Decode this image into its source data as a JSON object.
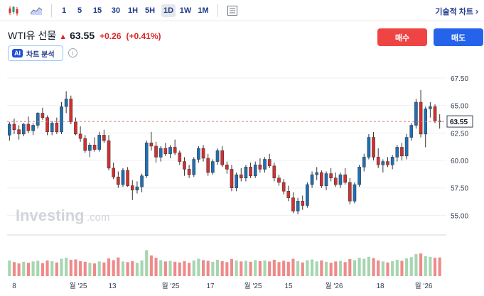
{
  "toolbar": {
    "intervals": [
      "1",
      "5",
      "15",
      "30",
      "1H",
      "5H",
      "1D",
      "1W",
      "1M"
    ],
    "active_interval": "1D",
    "indicators_label": "기술적 차트"
  },
  "instrument": {
    "symbol": "WTI유 선물",
    "price": "63.55",
    "change": "+0.26",
    "change_pct": "(+0.41%)"
  },
  "actions": {
    "buy_label": "매수",
    "sell_label": "매도"
  },
  "ai_analysis": {
    "badge": "AI",
    "label": "차트 분석"
  },
  "watermark": {
    "brand": "Investing",
    "suffix": ".com"
  },
  "colors": {
    "up": "#2a9d6f",
    "down": "#d32f2f",
    "candle_up_fill": "#1f6fb5",
    "candle_down_fill": "#d32f2f",
    "vol_up": "#a5d6b0",
    "vol_down": "#ef8a8a"
  },
  "chart_data": {
    "type": "candlestick",
    "y_ticks": [
      "67.50",
      "65.00",
      "62.50",
      "60.00",
      "57.50",
      "55.00"
    ],
    "ylim": [
      53.8,
      68.4
    ],
    "current_price_label": "63.55",
    "current_price": 63.55,
    "x_labels": [
      "8",
      "월 '25",
      "13",
      "월 '25",
      "17",
      "월 '25",
      "15",
      "월 '26",
      "18",
      "월 '26"
    ],
    "candles": [
      [
        62.3,
        63.5,
        61.8,
        63.3,
        47
      ],
      [
        63.3,
        63.8,
        62.4,
        62.8,
        42
      ],
      [
        62.8,
        63.2,
        61.9,
        62.4,
        38
      ],
      [
        62.4,
        63.4,
        62.2,
        63.3,
        43
      ],
      [
        63.3,
        64.0,
        62.5,
        62.7,
        40
      ],
      [
        62.7,
        63.4,
        62.3,
        63.2,
        44
      ],
      [
        63.2,
        64.4,
        62.9,
        64.3,
        46
      ],
      [
        64.3,
        64.8,
        63.7,
        63.9,
        39
      ],
      [
        63.9,
        64.1,
        62.3,
        62.6,
        47
      ],
      [
        62.6,
        63.6,
        62.3,
        63.4,
        45
      ],
      [
        63.4,
        63.9,
        62.4,
        62.6,
        41
      ],
      [
        62.6,
        65.3,
        62.4,
        64.9,
        52
      ],
      [
        64.9,
        66.3,
        64.3,
        65.6,
        55
      ],
      [
        65.6,
        65.9,
        63.3,
        63.5,
        49
      ],
      [
        63.5,
        63.9,
        62.3,
        62.4,
        50
      ],
      [
        62.4,
        63.1,
        61.7,
        62.0,
        45
      ],
      [
        62.0,
        62.3,
        60.7,
        60.9,
        43
      ],
      [
        60.9,
        61.6,
        60.3,
        61.4,
        40
      ],
      [
        61.4,
        62.1,
        60.8,
        61.0,
        38
      ],
      [
        61.0,
        62.6,
        60.8,
        62.3,
        44
      ],
      [
        62.3,
        62.8,
        61.6,
        61.8,
        41
      ],
      [
        61.8,
        62.3,
        59.1,
        59.3,
        53
      ],
      [
        59.3,
        59.8,
        58.3,
        58.5,
        48
      ],
      [
        58.5,
        59.0,
        57.5,
        57.8,
        56
      ],
      [
        57.8,
        59.3,
        57.6,
        59.1,
        44
      ],
      [
        59.1,
        59.4,
        57.6,
        57.7,
        42
      ],
      [
        57.7,
        58.2,
        56.4,
        57.3,
        45
      ],
      [
        57.3,
        58.1,
        57.0,
        57.6,
        40
      ],
      [
        57.6,
        58.8,
        57.1,
        58.6,
        47
      ],
      [
        58.6,
        61.8,
        58.4,
        61.6,
        78
      ],
      [
        61.6,
        62.6,
        60.9,
        61.3,
        62
      ],
      [
        61.3,
        61.7,
        59.8,
        60.3,
        55
      ],
      [
        60.3,
        61.3,
        59.9,
        61.1,
        48
      ],
      [
        61.1,
        61.6,
        60.4,
        60.6,
        44
      ],
      [
        60.6,
        61.4,
        60.2,
        61.2,
        46
      ],
      [
        61.2,
        61.9,
        60.5,
        60.7,
        43
      ],
      [
        60.7,
        60.9,
        59.6,
        59.9,
        41
      ],
      [
        59.9,
        60.3,
        58.6,
        59.2,
        45
      ],
      [
        59.2,
        59.6,
        58.4,
        58.7,
        40
      ],
      [
        58.7,
        60.3,
        58.5,
        60.1,
        47
      ],
      [
        60.1,
        61.3,
        59.8,
        61.1,
        52
      ],
      [
        61.1,
        61.4,
        59.9,
        60.2,
        48
      ],
      [
        60.2,
        60.6,
        58.6,
        58.9,
        46
      ],
      [
        58.9,
        60.1,
        58.7,
        59.9,
        43
      ],
      [
        59.9,
        61.1,
        59.6,
        60.9,
        49
      ],
      [
        60.9,
        61.3,
        59.4,
        59.6,
        45
      ],
      [
        59.6,
        59.9,
        58.8,
        59.2,
        42
      ],
      [
        59.2,
        59.6,
        57.2,
        57.5,
        51
      ],
      [
        57.5,
        58.9,
        57.2,
        58.7,
        47
      ],
      [
        58.7,
        59.3,
        58.1,
        58.4,
        44
      ],
      [
        58.4,
        59.6,
        58.1,
        59.4,
        46
      ],
      [
        59.4,
        59.8,
        58.4,
        58.6,
        43
      ],
      [
        58.6,
        59.9,
        58.4,
        59.6,
        48
      ],
      [
        59.6,
        60.2,
        58.9,
        59.2,
        45
      ],
      [
        59.2,
        60.3,
        58.9,
        60.1,
        47
      ],
      [
        60.1,
        60.6,
        59.3,
        59.5,
        44
      ],
      [
        59.5,
        59.8,
        58.1,
        58.4,
        49
      ],
      [
        58.4,
        58.7,
        57.7,
        58.0,
        42
      ],
      [
        58.0,
        58.3,
        56.9,
        57.2,
        46
      ],
      [
        57.2,
        57.7,
        56.3,
        56.6,
        43
      ],
      [
        56.6,
        57.1,
        55.2,
        55.4,
        52
      ],
      [
        55.4,
        56.6,
        55.1,
        56.3,
        45
      ],
      [
        56.3,
        56.8,
        55.5,
        55.9,
        41
      ],
      [
        55.9,
        58.0,
        55.7,
        57.8,
        48
      ],
      [
        57.8,
        59.0,
        57.5,
        58.7,
        50
      ],
      [
        58.7,
        59.4,
        58.2,
        58.9,
        44
      ],
      [
        58.9,
        59.1,
        57.5,
        57.7,
        47
      ],
      [
        57.7,
        59.0,
        57.3,
        58.8,
        43
      ],
      [
        58.8,
        59.3,
        58.1,
        58.4,
        40
      ],
      [
        58.4,
        58.9,
        57.6,
        57.8,
        44
      ],
      [
        57.8,
        58.9,
        57.5,
        58.7,
        46
      ],
      [
        58.7,
        59.3,
        57.8,
        58.0,
        42
      ],
      [
        58.0,
        58.4,
        56.0,
        56.3,
        51
      ],
      [
        56.3,
        58.0,
        56.1,
        57.8,
        48
      ],
      [
        57.8,
        59.6,
        57.6,
        59.4,
        55
      ],
      [
        59.4,
        60.6,
        59.0,
        60.3,
        52
      ],
      [
        60.3,
        62.4,
        60.1,
        62.1,
        58
      ],
      [
        62.1,
        62.6,
        60.0,
        60.3,
        54
      ],
      [
        60.3,
        61.1,
        59.3,
        59.6,
        47
      ],
      [
        59.6,
        60.1,
        58.9,
        59.9,
        44
      ],
      [
        59.9,
        60.3,
        59.4,
        59.6,
        41
      ],
      [
        59.6,
        60.5,
        59.2,
        60.3,
        45
      ],
      [
        60.3,
        61.4,
        59.9,
        61.2,
        49
      ],
      [
        61.2,
        61.6,
        60.0,
        60.4,
        46
      ],
      [
        60.4,
        62.4,
        60.1,
        62.1,
        53
      ],
      [
        62.1,
        63.4,
        61.8,
        63.2,
        57
      ],
      [
        63.2,
        65.6,
        62.9,
        65.3,
        66
      ],
      [
        65.3,
        66.4,
        62.1,
        62.4,
        68
      ],
      [
        62.4,
        64.9,
        61.2,
        64.7,
        60
      ],
      [
        64.7,
        65.3,
        63.9,
        64.9,
        58
      ],
      [
        64.9,
        65.1,
        63.4,
        63.6,
        55
      ],
      [
        63.6,
        64.2,
        62.9,
        63.55,
        56
      ]
    ]
  }
}
